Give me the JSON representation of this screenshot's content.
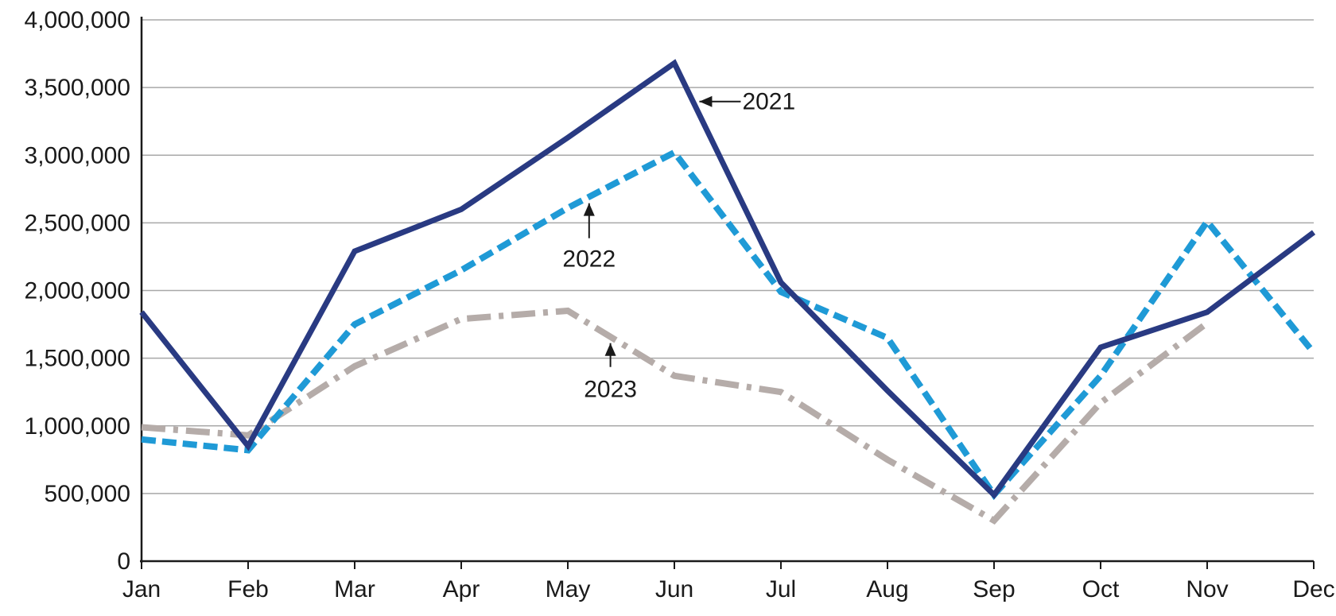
{
  "chart_data": {
    "type": "line",
    "title": "",
    "xlabel": "",
    "ylabel": "",
    "categories": [
      "Jan",
      "Feb",
      "Mar",
      "Apr",
      "May",
      "Jun",
      "Jul",
      "Aug",
      "Sep",
      "Oct",
      "Nov",
      "Dec"
    ],
    "ylim": [
      0,
      4000000
    ],
    "yticks": [
      0,
      500000,
      1000000,
      1500000,
      2000000,
      2500000,
      3000000,
      3500000,
      4000000
    ],
    "ytick_labels": [
      "0",
      "500,000",
      "1,000,000",
      "1,500,000",
      "2,000,000",
      "2,500,000",
      "3,000,000",
      "3,500,000",
      "4,000,000"
    ],
    "grid": "horizontal",
    "legend": "none",
    "series": [
      {
        "name": "2021",
        "color": "#293a82",
        "style": "solid",
        "values": [
          1840000,
          850000,
          2290000,
          2600000,
          3130000,
          3680000,
          2060000,
          1260000,
          490000,
          1580000,
          1840000,
          2430000
        ]
      },
      {
        "name": "2022",
        "color": "#1f9ad6",
        "style": "dashed",
        "values": [
          900000,
          820000,
          1750000,
          2150000,
          2610000,
          3020000,
          1990000,
          1650000,
          490000,
          1370000,
          2510000,
          1540000
        ]
      },
      {
        "name": "2023",
        "color": "#b5aca9",
        "style": "dash-dot",
        "values": [
          990000,
          930000,
          1440000,
          1790000,
          1850000,
          1370000,
          1250000,
          750000,
          300000,
          1170000,
          1760000,
          null
        ]
      }
    ],
    "annotations": [
      {
        "text": "2021",
        "series": "2021"
      },
      {
        "text": "2022",
        "series": "2022"
      },
      {
        "text": "2023",
        "series": "2023"
      }
    ]
  }
}
